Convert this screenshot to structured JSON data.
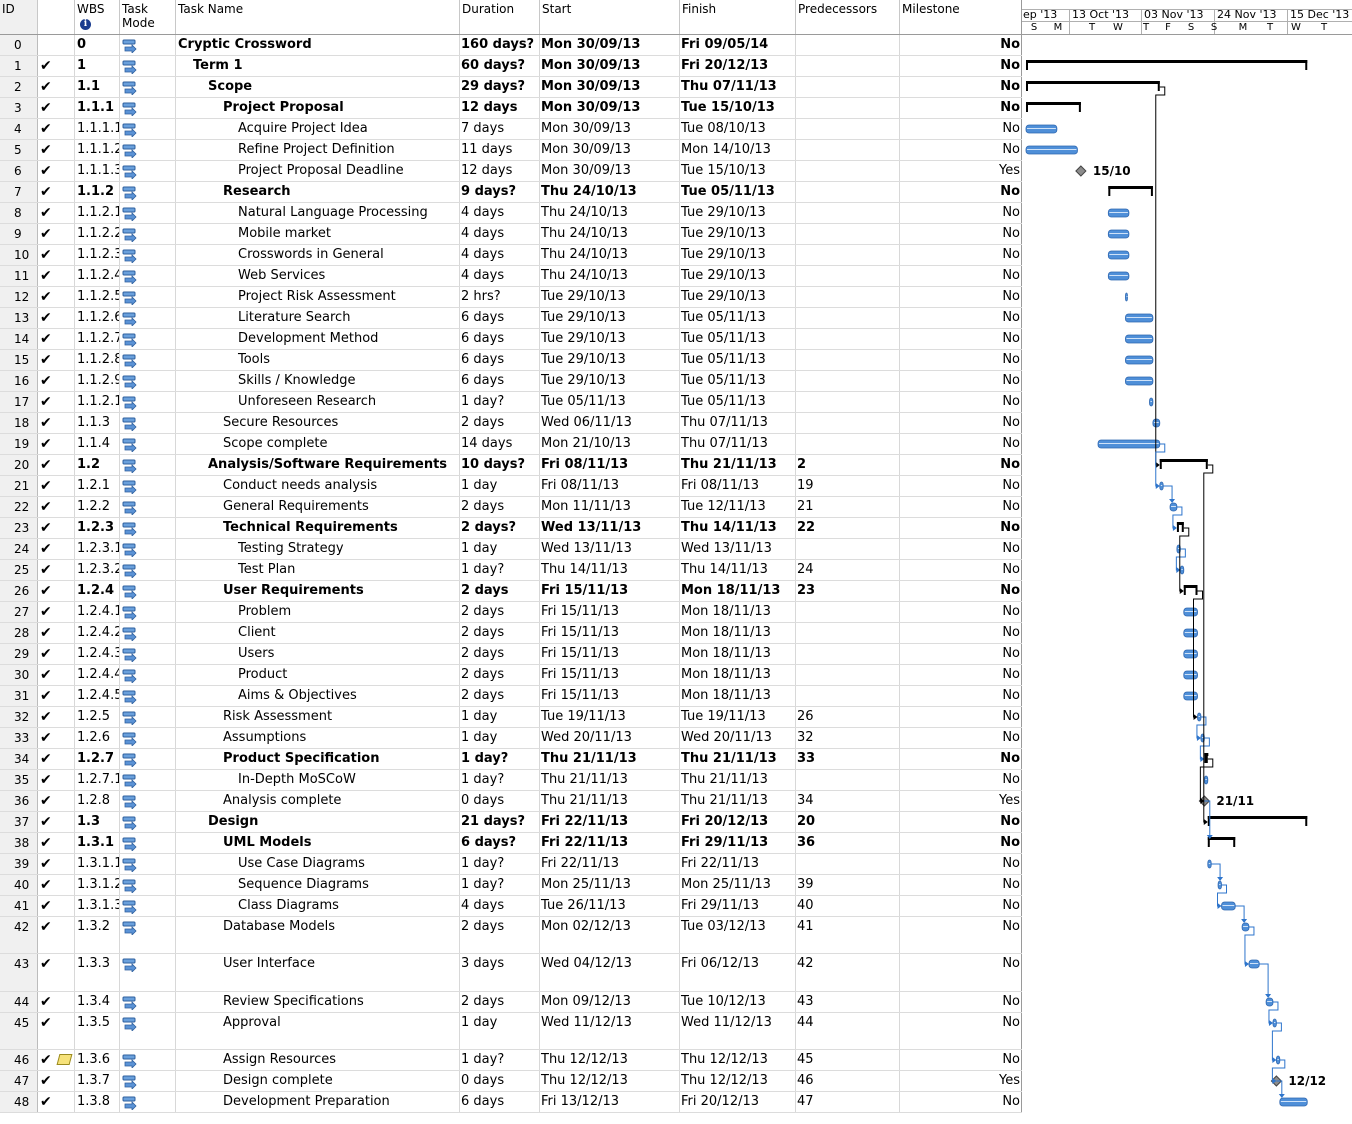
{
  "headers": {
    "id": "ID",
    "wbs": "WBS",
    "mode": "Task Mode",
    "name": "Task Name",
    "duration": "Duration",
    "start": "Start",
    "finish": "Finish",
    "predecessors": "Predecessors",
    "milestone": "Milestone"
  },
  "timescale": {
    "top": [
      "ep '13",
      "13 Oct '13",
      "03 Nov '13",
      "24 Nov '13",
      "15 Dec '13"
    ],
    "days": [
      "S",
      "M",
      "T",
      "W",
      "T",
      "F",
      "S",
      "S",
      "M",
      "T",
      "W",
      "T"
    ]
  },
  "gantt_labels": {
    "m6": "15/10",
    "m36": "21/11",
    "m47": "12/12"
  },
  "colors": {
    "bar": "#4f8fd8",
    "summary": "#000000",
    "link": "#2e75cc",
    "milestone": "#8c8c8c"
  },
  "tasks": [
    {
      "id": "0",
      "wbs": "0",
      "name": "Cryptic Crossword",
      "dur": "160 days?",
      "start": "Mon 30/09/13",
      "finish": "Fri 09/05/14",
      "pred": "",
      "ms": "No",
      "lvl": 0,
      "sum": true,
      "check": false,
      "note": false
    },
    {
      "id": "1",
      "wbs": "1",
      "name": "Term 1",
      "dur": "60 days?",
      "start": "Mon 30/09/13",
      "finish": "Fri 20/12/13",
      "pred": "",
      "ms": "No",
      "lvl": 1,
      "sum": true,
      "check": true,
      "note": false
    },
    {
      "id": "2",
      "wbs": "1.1",
      "name": "Scope",
      "dur": "29 days?",
      "start": "Mon 30/09/13",
      "finish": "Thu 07/11/13",
      "pred": "",
      "ms": "No",
      "lvl": 2,
      "sum": true,
      "check": true,
      "note": false
    },
    {
      "id": "3",
      "wbs": "1.1.1",
      "name": "Project Proposal",
      "dur": "12 days",
      "start": "Mon 30/09/13",
      "finish": "Tue 15/10/13",
      "pred": "",
      "ms": "No",
      "lvl": 3,
      "sum": true,
      "check": true,
      "note": false
    },
    {
      "id": "4",
      "wbs": "1.1.1.1",
      "name": "Acquire Project Idea",
      "dur": "7 days",
      "start": "Mon 30/09/13",
      "finish": "Tue 08/10/13",
      "pred": "",
      "ms": "No",
      "lvl": 4,
      "sum": false,
      "check": true,
      "note": false
    },
    {
      "id": "5",
      "wbs": "1.1.1.2",
      "name": "Refine Project Definition",
      "dur": "11 days",
      "start": "Mon 30/09/13",
      "finish": "Mon 14/10/13",
      "pred": "",
      "ms": "No",
      "lvl": 4,
      "sum": false,
      "check": true,
      "note": false
    },
    {
      "id": "6",
      "wbs": "1.1.1.3",
      "name": "Project Proposal Deadline",
      "dur": "12 days",
      "start": "Mon 30/09/13",
      "finish": "Tue 15/10/13",
      "pred": "",
      "ms": "Yes",
      "lvl": 4,
      "sum": false,
      "check": true,
      "note": false
    },
    {
      "id": "7",
      "wbs": "1.1.2",
      "name": "Research",
      "dur": "9 days?",
      "start": "Thu 24/10/13",
      "finish": "Tue 05/11/13",
      "pred": "",
      "ms": "No",
      "lvl": 3,
      "sum": true,
      "check": true,
      "note": false
    },
    {
      "id": "8",
      "wbs": "1.1.2.1",
      "name": "Natural Language Processing",
      "dur": "4 days",
      "start": "Thu 24/10/13",
      "finish": "Tue 29/10/13",
      "pred": "",
      "ms": "No",
      "lvl": 4,
      "sum": false,
      "check": true,
      "note": false
    },
    {
      "id": "9",
      "wbs": "1.1.2.2",
      "name": "Mobile market",
      "dur": "4 days",
      "start": "Thu 24/10/13",
      "finish": "Tue 29/10/13",
      "pred": "",
      "ms": "No",
      "lvl": 4,
      "sum": false,
      "check": true,
      "note": false
    },
    {
      "id": "10",
      "wbs": "1.1.2.3",
      "name": "Crosswords in General",
      "dur": "4 days",
      "start": "Thu 24/10/13",
      "finish": "Tue 29/10/13",
      "pred": "",
      "ms": "No",
      "lvl": 4,
      "sum": false,
      "check": true,
      "note": false
    },
    {
      "id": "11",
      "wbs": "1.1.2.4",
      "name": "Web Services",
      "dur": "4 days",
      "start": "Thu 24/10/13",
      "finish": "Tue 29/10/13",
      "pred": "",
      "ms": "No",
      "lvl": 4,
      "sum": false,
      "check": true,
      "note": false
    },
    {
      "id": "12",
      "wbs": "1.1.2.5",
      "name": "Project Risk Assessment",
      "dur": "2 hrs?",
      "start": "Tue 29/10/13",
      "finish": "Tue 29/10/13",
      "pred": "",
      "ms": "No",
      "lvl": 4,
      "sum": false,
      "check": true,
      "note": false
    },
    {
      "id": "13",
      "wbs": "1.1.2.6",
      "name": "Literature Search",
      "dur": "6 days",
      "start": "Tue 29/10/13",
      "finish": "Tue 05/11/13",
      "pred": "",
      "ms": "No",
      "lvl": 4,
      "sum": false,
      "check": true,
      "note": false
    },
    {
      "id": "14",
      "wbs": "1.1.2.7",
      "name": "Development Method",
      "dur": "6 days",
      "start": "Tue 29/10/13",
      "finish": "Tue 05/11/13",
      "pred": "",
      "ms": "No",
      "lvl": 4,
      "sum": false,
      "check": true,
      "note": false
    },
    {
      "id": "15",
      "wbs": "1.1.2.8",
      "name": "Tools",
      "dur": "6 days",
      "start": "Tue 29/10/13",
      "finish": "Tue 05/11/13",
      "pred": "",
      "ms": "No",
      "lvl": 4,
      "sum": false,
      "check": true,
      "note": false
    },
    {
      "id": "16",
      "wbs": "1.1.2.9",
      "name": "Skills / Knowledge",
      "dur": "6 days",
      "start": "Tue 29/10/13",
      "finish": "Tue 05/11/13",
      "pred": "",
      "ms": "No",
      "lvl": 4,
      "sum": false,
      "check": true,
      "note": false
    },
    {
      "id": "17",
      "wbs": "1.1.2.1(",
      "name": "Unforeseen Research",
      "dur": "1 day?",
      "start": "Tue 05/11/13",
      "finish": "Tue 05/11/13",
      "pred": "",
      "ms": "No",
      "lvl": 4,
      "sum": false,
      "check": true,
      "note": false
    },
    {
      "id": "18",
      "wbs": "1.1.3",
      "name": "Secure Resources",
      "dur": "2 days",
      "start": "Wed 06/11/13",
      "finish": "Thu 07/11/13",
      "pred": "",
      "ms": "No",
      "lvl": 3,
      "sum": false,
      "check": true,
      "note": false
    },
    {
      "id": "19",
      "wbs": "1.1.4",
      "name": "Scope complete",
      "dur": "14 days",
      "start": "Mon 21/10/13",
      "finish": "Thu 07/11/13",
      "pred": "",
      "ms": "No",
      "lvl": 3,
      "sum": false,
      "check": true,
      "note": false
    },
    {
      "id": "20",
      "wbs": "1.2",
      "name": "Analysis/Software Requirements",
      "dur": "10 days?",
      "start": "Fri 08/11/13",
      "finish": "Thu 21/11/13",
      "pred": "2",
      "ms": "No",
      "lvl": 2,
      "sum": true,
      "check": true,
      "note": false
    },
    {
      "id": "21",
      "wbs": "1.2.1",
      "name": "Conduct needs analysis",
      "dur": "1 day",
      "start": "Fri 08/11/13",
      "finish": "Fri 08/11/13",
      "pred": "19",
      "ms": "No",
      "lvl": 3,
      "sum": false,
      "check": true,
      "note": false
    },
    {
      "id": "22",
      "wbs": "1.2.2",
      "name": "General Requirements",
      "dur": "2 days",
      "start": "Mon 11/11/13",
      "finish": "Tue 12/11/13",
      "pred": "21",
      "ms": "No",
      "lvl": 3,
      "sum": false,
      "check": true,
      "note": false
    },
    {
      "id": "23",
      "wbs": "1.2.3",
      "name": "Technical Requirements",
      "dur": "2 days?",
      "start": "Wed 13/11/13",
      "finish": "Thu 14/11/13",
      "pred": "22",
      "ms": "No",
      "lvl": 3,
      "sum": true,
      "check": true,
      "note": false
    },
    {
      "id": "24",
      "wbs": "1.2.3.1",
      "name": "Testing Strategy",
      "dur": "1 day",
      "start": "Wed 13/11/13",
      "finish": "Wed 13/11/13",
      "pred": "",
      "ms": "No",
      "lvl": 4,
      "sum": false,
      "check": true,
      "note": false
    },
    {
      "id": "25",
      "wbs": "1.2.3.2",
      "name": "Test Plan",
      "dur": "1 day?",
      "start": "Thu 14/11/13",
      "finish": "Thu 14/11/13",
      "pred": "24",
      "ms": "No",
      "lvl": 4,
      "sum": false,
      "check": true,
      "note": false
    },
    {
      "id": "26",
      "wbs": "1.2.4",
      "name": "User Requirements",
      "dur": "2 days",
      "start": "Fri 15/11/13",
      "finish": "Mon 18/11/13",
      "pred": "23",
      "ms": "No",
      "lvl": 3,
      "sum": true,
      "check": true,
      "note": false
    },
    {
      "id": "27",
      "wbs": "1.2.4.1",
      "name": "Problem",
      "dur": "2 days",
      "start": "Fri 15/11/13",
      "finish": "Mon 18/11/13",
      "pred": "",
      "ms": "No",
      "lvl": 4,
      "sum": false,
      "check": true,
      "note": false
    },
    {
      "id": "28",
      "wbs": "1.2.4.2",
      "name": "Client",
      "dur": "2 days",
      "start": "Fri 15/11/13",
      "finish": "Mon 18/11/13",
      "pred": "",
      "ms": "No",
      "lvl": 4,
      "sum": false,
      "check": true,
      "note": false
    },
    {
      "id": "29",
      "wbs": "1.2.4.3",
      "name": "Users",
      "dur": "2 days",
      "start": "Fri 15/11/13",
      "finish": "Mon 18/11/13",
      "pred": "",
      "ms": "No",
      "lvl": 4,
      "sum": false,
      "check": true,
      "note": false
    },
    {
      "id": "30",
      "wbs": "1.2.4.4",
      "name": "Product",
      "dur": "2 days",
      "start": "Fri 15/11/13",
      "finish": "Mon 18/11/13",
      "pred": "",
      "ms": "No",
      "lvl": 4,
      "sum": false,
      "check": true,
      "note": false
    },
    {
      "id": "31",
      "wbs": "1.2.4.5",
      "name": "Aims & Objectives",
      "dur": "2 days",
      "start": "Fri 15/11/13",
      "finish": "Mon 18/11/13",
      "pred": "",
      "ms": "No",
      "lvl": 4,
      "sum": false,
      "check": true,
      "note": false
    },
    {
      "id": "32",
      "wbs": "1.2.5",
      "name": "Risk Assessment",
      "dur": "1 day",
      "start": "Tue 19/11/13",
      "finish": "Tue 19/11/13",
      "pred": "26",
      "ms": "No",
      "lvl": 3,
      "sum": false,
      "check": true,
      "note": false
    },
    {
      "id": "33",
      "wbs": "1.2.6",
      "name": "Assumptions",
      "dur": "1 day",
      "start": "Wed 20/11/13",
      "finish": "Wed 20/11/13",
      "pred": "32",
      "ms": "No",
      "lvl": 3,
      "sum": false,
      "check": true,
      "note": false
    },
    {
      "id": "34",
      "wbs": "1.2.7",
      "name": "Product Specification",
      "dur": "1 day?",
      "start": "Thu 21/11/13",
      "finish": "Thu 21/11/13",
      "pred": "33",
      "ms": "No",
      "lvl": 3,
      "sum": true,
      "check": true,
      "note": false
    },
    {
      "id": "35",
      "wbs": "1.2.7.1",
      "name": "In-Depth MoSCoW",
      "dur": "1 day?",
      "start": "Thu 21/11/13",
      "finish": "Thu 21/11/13",
      "pred": "",
      "ms": "No",
      "lvl": 4,
      "sum": false,
      "check": true,
      "note": false
    },
    {
      "id": "36",
      "wbs": "1.2.8",
      "name": "Analysis complete",
      "dur": "0 days",
      "start": "Thu 21/11/13",
      "finish": "Thu 21/11/13",
      "pred": "34",
      "ms": "Yes",
      "lvl": 3,
      "sum": false,
      "check": true,
      "note": false
    },
    {
      "id": "37",
      "wbs": "1.3",
      "name": "Design",
      "dur": "21 days?",
      "start": "Fri 22/11/13",
      "finish": "Fri 20/12/13",
      "pred": "20",
      "ms": "No",
      "lvl": 2,
      "sum": true,
      "check": true,
      "note": false
    },
    {
      "id": "38",
      "wbs": "1.3.1",
      "name": "UML Models",
      "dur": "6 days?",
      "start": "Fri 22/11/13",
      "finish": "Fri 29/11/13",
      "pred": "36",
      "ms": "No",
      "lvl": 3,
      "sum": true,
      "check": true,
      "note": false
    },
    {
      "id": "39",
      "wbs": "1.3.1.1",
      "name": "Use Case Diagrams",
      "dur": "1 day?",
      "start": "Fri 22/11/13",
      "finish": "Fri 22/11/13",
      "pred": "",
      "ms": "No",
      "lvl": 4,
      "sum": false,
      "check": true,
      "note": false
    },
    {
      "id": "40",
      "wbs": "1.3.1.2",
      "name": "Sequence Diagrams",
      "dur": "1 day?",
      "start": "Mon 25/11/13",
      "finish": "Mon 25/11/13",
      "pred": "39",
      "ms": "No",
      "lvl": 4,
      "sum": false,
      "check": true,
      "note": false
    },
    {
      "id": "41",
      "wbs": "1.3.1.3",
      "name": "Class Diagrams",
      "dur": "4 days",
      "start": "Tue 26/11/13",
      "finish": "Fri 29/11/13",
      "pred": "40",
      "ms": "No",
      "lvl": 4,
      "sum": false,
      "check": true,
      "note": false
    },
    {
      "id": "42",
      "wbs": "1.3.2",
      "name": "Database Models",
      "dur": "2 days",
      "start": "Mon 02/12/13",
      "finish": "Tue 03/12/13",
      "pred": "41",
      "ms": "No",
      "lvl": 3,
      "sum": false,
      "check": true,
      "note": false
    },
    {
      "id": "43",
      "wbs": "1.3.3",
      "name": "User Interface",
      "dur": "3 days",
      "start": "Wed 04/12/13",
      "finish": "Fri 06/12/13",
      "pred": "42",
      "ms": "No",
      "lvl": 3,
      "sum": false,
      "check": true,
      "note": false
    },
    {
      "id": "44",
      "wbs": "1.3.4",
      "name": "Review Specifications",
      "dur": "2 days",
      "start": "Mon 09/12/13",
      "finish": "Tue 10/12/13",
      "pred": "43",
      "ms": "No",
      "lvl": 3,
      "sum": false,
      "check": true,
      "note": false
    },
    {
      "id": "45",
      "wbs": "1.3.5",
      "name": "Approval",
      "dur": "1 day",
      "start": "Wed 11/12/13",
      "finish": "Wed 11/12/13",
      "pred": "44",
      "ms": "No",
      "lvl": 3,
      "sum": false,
      "check": true,
      "note": false
    },
    {
      "id": "46",
      "wbs": "1.3.6",
      "name": "Assign Resources",
      "dur": "1 day?",
      "start": "Thu 12/12/13",
      "finish": "Thu 12/12/13",
      "pred": "45",
      "ms": "No",
      "lvl": 3,
      "sum": false,
      "check": true,
      "note": true
    },
    {
      "id": "47",
      "wbs": "1.3.7",
      "name": "Design complete",
      "dur": "0 days",
      "start": "Thu 12/12/13",
      "finish": "Thu 12/12/13",
      "pred": "46",
      "ms": "Yes",
      "lvl": 3,
      "sum": false,
      "check": true,
      "note": false
    },
    {
      "id": "48",
      "wbs": "1.3.8",
      "name": "Development Preparation",
      "dur": "6 days",
      "start": "Fri 13/12/13",
      "finish": "Fri 20/12/13",
      "pred": "47",
      "ms": "No",
      "lvl": 3,
      "sum": false,
      "check": true,
      "note": false
    }
  ]
}
